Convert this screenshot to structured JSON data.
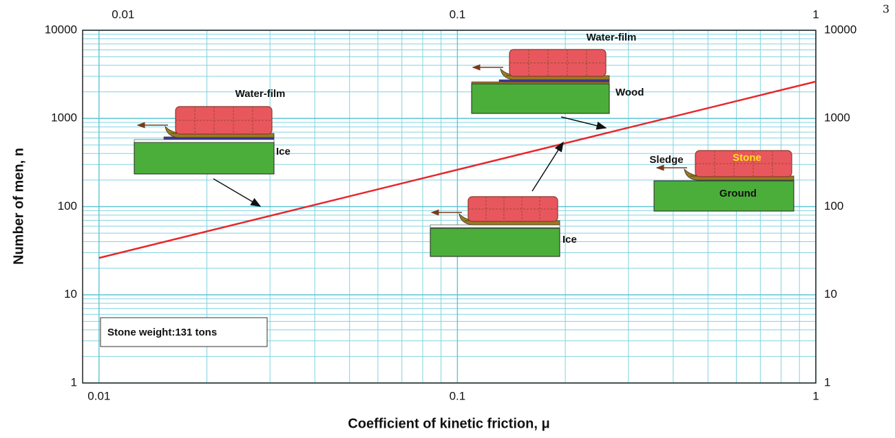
{
  "chart_data": {
    "type": "line",
    "x_label": "Coefficient of kinetic friction, μ",
    "y_label": "Number of men, n",
    "x": [
      0.01,
      1
    ],
    "values": [
      26.2,
      2620
    ],
    "color": "#e8262c",
    "xlim": [
      0.009,
      1
    ],
    "ylim": [
      1,
      10000
    ],
    "xticks": [
      0.01,
      0.1,
      1
    ],
    "yticks": [
      1,
      10,
      100,
      1000,
      10000
    ],
    "x_minor_ticks": [
      0.02,
      0.03,
      0.04,
      0.05,
      0.06,
      0.07,
      0.08,
      0.09,
      0.2,
      0.3,
      0.4,
      0.5,
      0.6,
      0.7,
      0.8,
      0.9
    ],
    "y_minor_ticks": [
      2,
      3,
      4,
      5,
      6,
      7,
      8,
      9,
      20,
      30,
      40,
      50,
      60,
      70,
      80,
      90,
      200,
      300,
      400,
      500,
      600,
      700,
      800,
      900,
      2000,
      3000,
      4000,
      5000,
      6000,
      7000,
      8000,
      9000
    ],
    "x_scale": "log",
    "y_scale": "log",
    "grid": true,
    "annotation_box": "Stone weight:131 tons",
    "labels": [
      "Water-film",
      "Ice",
      "Water-film",
      "Wood",
      "Ice",
      "Sledge",
      "Stone",
      "Ground"
    ]
  },
  "page_number": "3"
}
